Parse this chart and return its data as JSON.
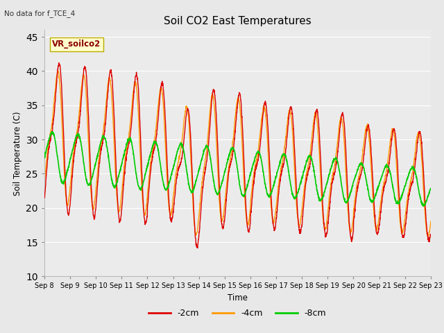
{
  "title": "Soil CO2 East Temperatures",
  "xlabel": "Time",
  "ylabel": "Soil Temperature (C)",
  "note": "No data for f_TCE_4",
  "legend_label": "VR_soilco2",
  "ylim": [
    10,
    46
  ],
  "yticks": [
    10,
    15,
    20,
    25,
    30,
    35,
    40,
    45
  ],
  "xlim": [
    0,
    15
  ],
  "xtick_labels": [
    "Sep 8",
    "Sep 9",
    "Sep 10",
    "Sep 11",
    "Sep 12",
    "Sep 13",
    "Sep 14",
    "Sep 15",
    "Sep 16",
    "Sep 17",
    "Sep 18",
    "Sep 19",
    "Sep 20",
    "Sep 21",
    "Sep 22",
    "Sep 23"
  ],
  "colors": {
    "2cm": "#dd0000",
    "4cm": "#ff9900",
    "8cm": "#00cc00"
  },
  "fig_facecolor": "#e8e8e8",
  "plot_facecolor": "#ebebeb",
  "grid_color": "#ffffff"
}
